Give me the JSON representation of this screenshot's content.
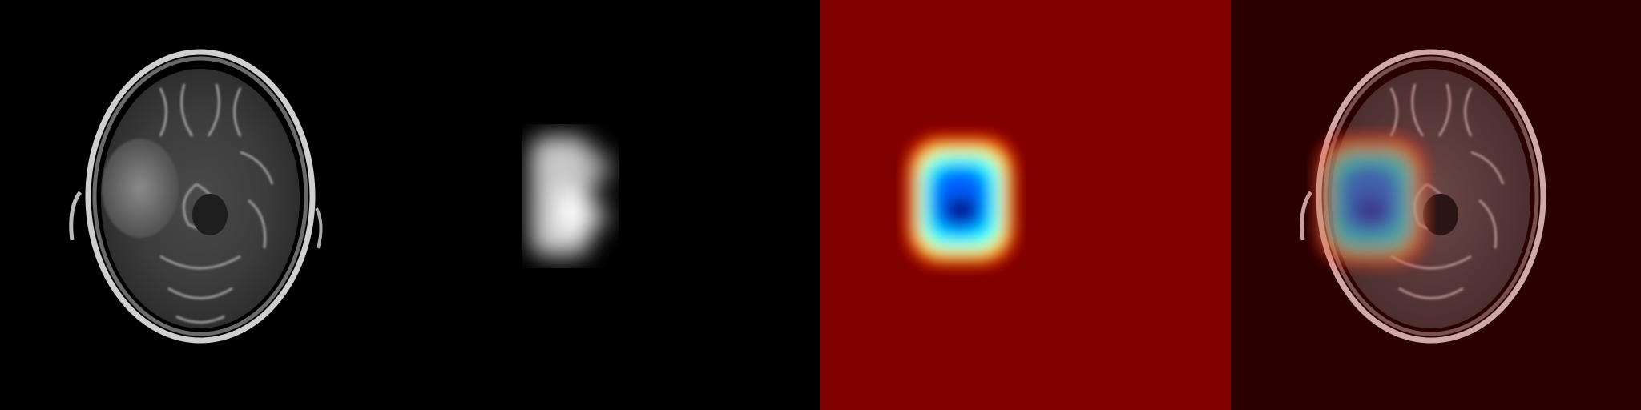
{
  "panels": [
    {
      "id": "mri",
      "kind": "grayscale-mri-axial-slice"
    },
    {
      "id": "attention-grayscale",
      "kind": "grayscale-activation-map"
    },
    {
      "id": "attention-jet",
      "kind": "jet-colormap-activation-map"
    },
    {
      "id": "overlay",
      "kind": "jet-heatmap-overlay-on-mri"
    }
  ],
  "colors": {
    "background": "#000000",
    "jet_low": "#800000",
    "jet_mid_red": "#ff0000",
    "jet_yellow": "#ffff00",
    "jet_cyan": "#00ffff",
    "jet_blue": "#0000ff",
    "jet_high": "#00007f",
    "overlay_tint": "#2a0000"
  },
  "icons": []
}
